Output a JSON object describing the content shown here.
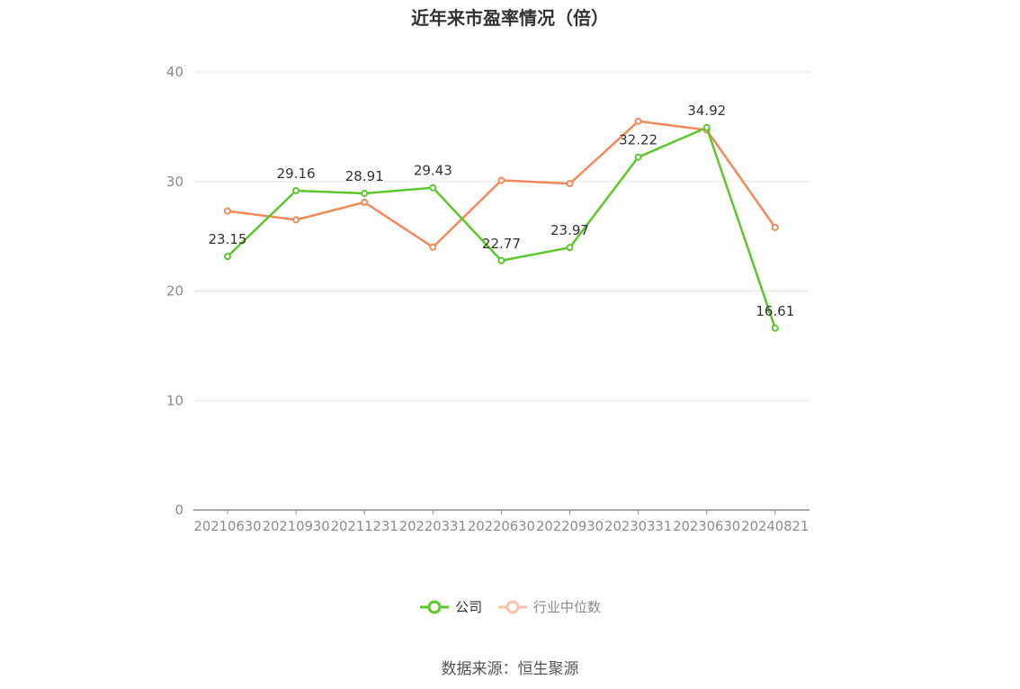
{
  "chart_data": {
    "type": "line",
    "title": "近年来市盈率情况（倍）",
    "source": "数据来源：恒生聚源",
    "categories": [
      "20210630",
      "20210930",
      "20211231",
      "20220331",
      "20220630",
      "20220930",
      "20230331",
      "20230630",
      "20240821"
    ],
    "ylim": [
      0,
      40
    ],
    "yticks": [
      0,
      10,
      20,
      30,
      40
    ],
    "grid": true,
    "legend_position": "bottom",
    "series": [
      {
        "name": "公司",
        "color": "#5cc72c",
        "values": [
          23.15,
          29.16,
          28.91,
          29.43,
          22.77,
          23.97,
          32.22,
          34.92,
          16.61
        ],
        "labels": [
          "23.15",
          "29.16",
          "28.91",
          "29.43",
          "22.77",
          "23.97",
          "32.22",
          "34.92",
          "16.61"
        ]
      },
      {
        "name": "行业中位数",
        "color": "#f2895a",
        "values": [
          27.3,
          26.5,
          28.1,
          24.0,
          30.1,
          29.8,
          35.5,
          34.7,
          25.8
        ]
      }
    ]
  }
}
